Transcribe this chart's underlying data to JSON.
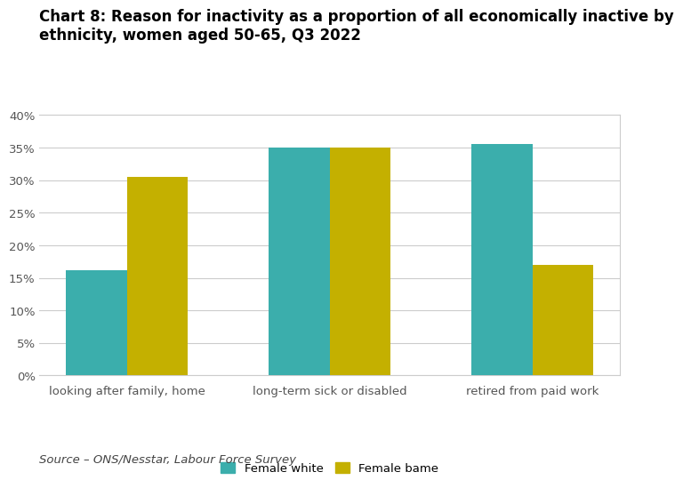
{
  "title_line1": "Chart 8: Reason for inactivity as a proportion of all economically inactive by",
  "title_line2": "ethnicity, women aged 50-65, Q3 2022",
  "categories": [
    "looking after family, home",
    "long-term sick or disabled",
    "retired from paid work"
  ],
  "female_white": [
    16.2,
    35.0,
    35.5
  ],
  "female_bame": [
    30.5,
    35.0,
    17.0
  ],
  "color_white": "#3BAEAC",
  "color_bame": "#C4B000",
  "legend_labels": [
    "Female white",
    "Female bame"
  ],
  "ylim": [
    0,
    40
  ],
  "yticks": [
    0,
    5,
    10,
    15,
    20,
    25,
    30,
    35,
    40
  ],
  "yticklabels": [
    "0%",
    "5%",
    "10%",
    "15%",
    "20%",
    "25%",
    "30%",
    "35%",
    "40%"
  ],
  "source": "Source – ONS/Nesstar, Labour Force Survey",
  "bar_width": 0.3,
  "background_color": "#ffffff",
  "plot_bg_color": "#ffffff",
  "grid_color": "#cccccc",
  "title_fontsize": 12,
  "tick_fontsize": 9.5,
  "legend_fontsize": 9.5,
  "source_fontsize": 9.5
}
